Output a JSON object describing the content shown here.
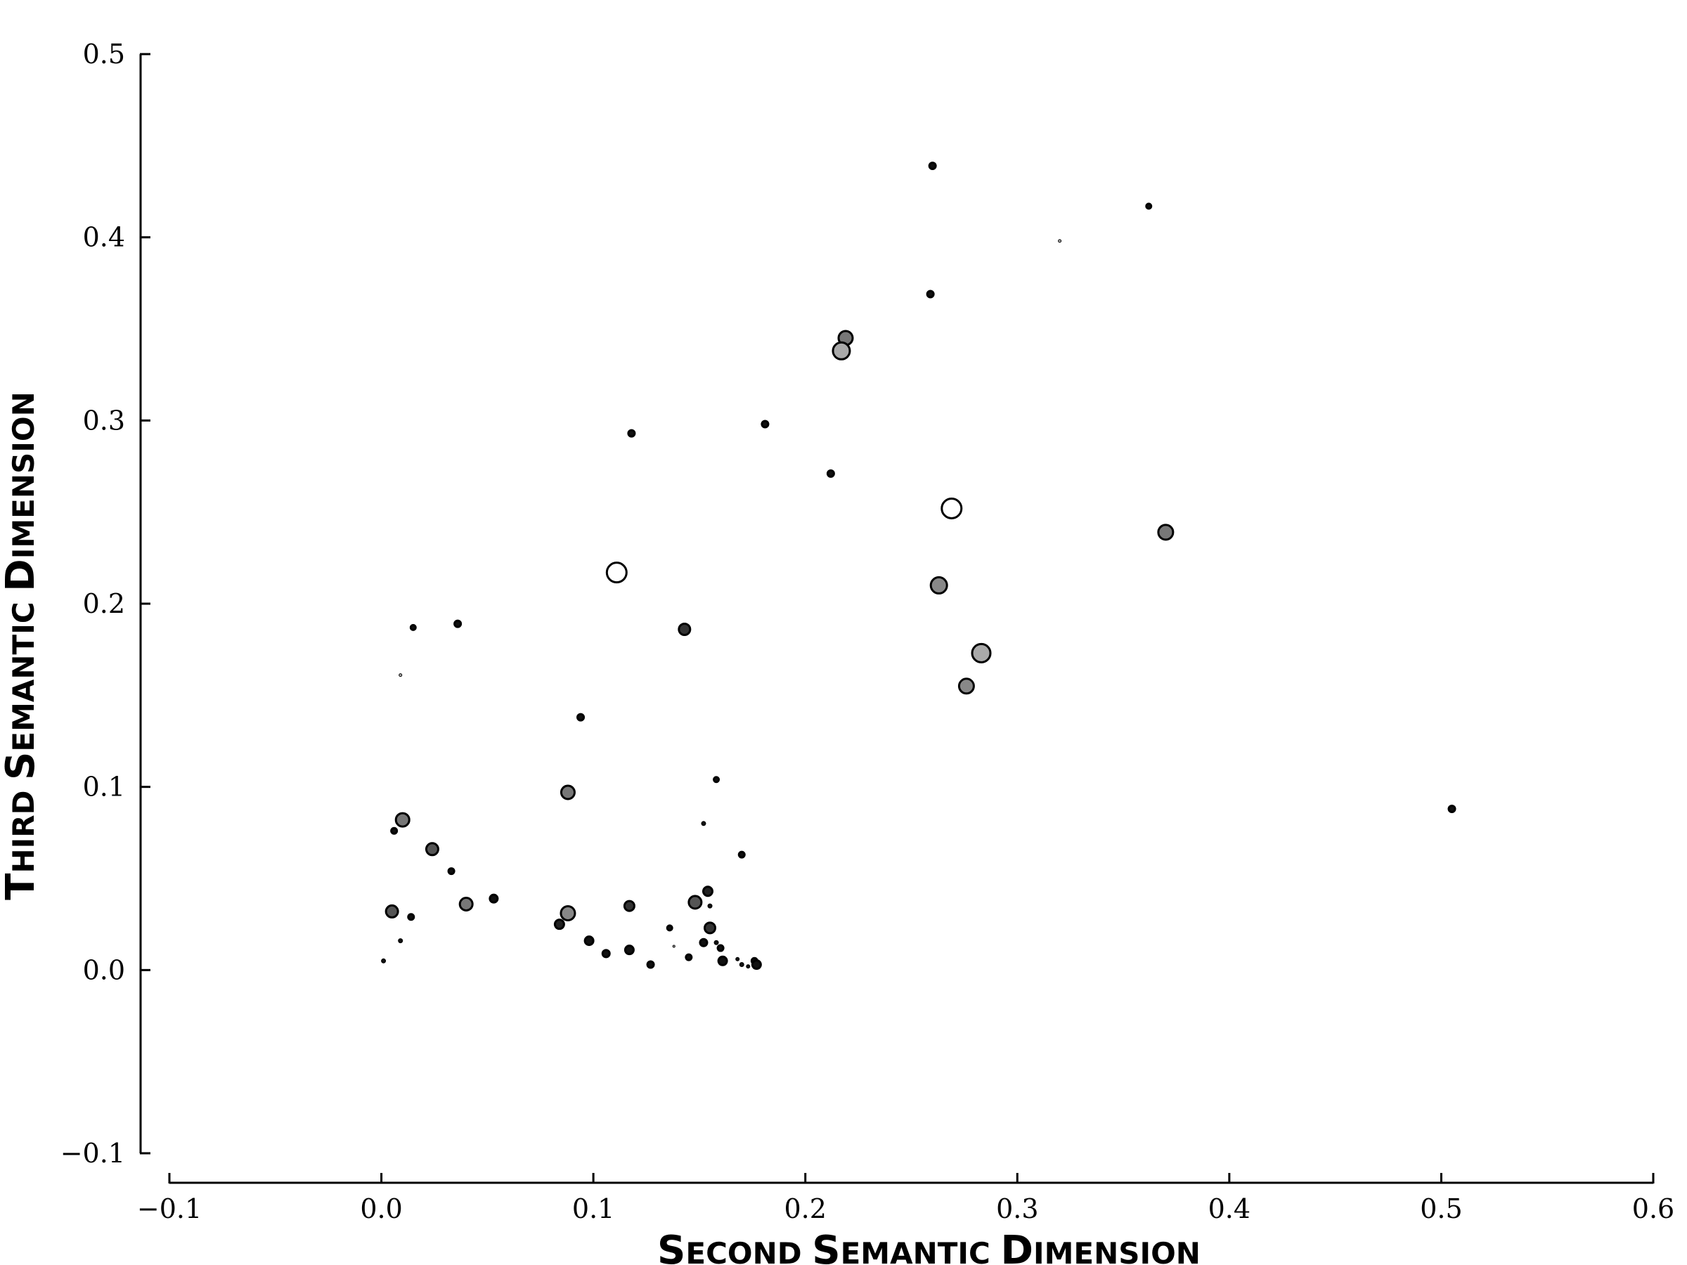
{
  "chart_data": {
    "type": "scatter",
    "title": "",
    "xlabel": "Second Semantic Dimension",
    "ylabel": "Third Semantic Dimension",
    "xlim": [
      -0.1,
      0.6
    ],
    "ylim": [
      -0.1,
      0.5
    ],
    "xticks": [
      "−0.1",
      "0.0",
      "0.1",
      "0.2",
      "0.3",
      "0.4",
      "0.5",
      "0.6"
    ],
    "yticks": [
      "−0.1",
      "0.0",
      "0.1",
      "0.2",
      "0.3",
      "0.4",
      "0.5"
    ],
    "grid": false,
    "encoding": "marker size and grey fill vary per point",
    "points": [
      {
        "x": 0.26,
        "y": 0.439,
        "size": 4.5,
        "fill": "#111111"
      },
      {
        "x": 0.362,
        "y": 0.417,
        "size": 3.5,
        "fill": "#111111"
      },
      {
        "x": 0.32,
        "y": 0.398,
        "size": 2,
        "fill": "#aaaaaa"
      },
      {
        "x": 0.259,
        "y": 0.369,
        "size": 4.5,
        "fill": "#111111"
      },
      {
        "x": 0.219,
        "y": 0.345,
        "size": 10,
        "fill": "#777777"
      },
      {
        "x": 0.217,
        "y": 0.338,
        "size": 12,
        "fill": "#aaaaaa"
      },
      {
        "x": 0.181,
        "y": 0.298,
        "size": 4.5,
        "fill": "#111111"
      },
      {
        "x": 0.118,
        "y": 0.293,
        "size": 4.5,
        "fill": "#111111"
      },
      {
        "x": 0.212,
        "y": 0.271,
        "size": 4.5,
        "fill": "#111111"
      },
      {
        "x": 0.269,
        "y": 0.252,
        "size": 14,
        "fill": "#ffffff"
      },
      {
        "x": 0.37,
        "y": 0.239,
        "size": 10.5,
        "fill": "#777777"
      },
      {
        "x": 0.111,
        "y": 0.217,
        "size": 14,
        "fill": "#ffffff"
      },
      {
        "x": 0.263,
        "y": 0.21,
        "size": 11.5,
        "fill": "#888888"
      },
      {
        "x": 0.036,
        "y": 0.189,
        "size": 4.5,
        "fill": "#111111"
      },
      {
        "x": 0.015,
        "y": 0.187,
        "size": 3.5,
        "fill": "#111111"
      },
      {
        "x": 0.143,
        "y": 0.186,
        "size": 8,
        "fill": "#333333"
      },
      {
        "x": 0.283,
        "y": 0.173,
        "size": 13,
        "fill": "#aaaaaa"
      },
      {
        "x": 0.009,
        "y": 0.161,
        "size": 2,
        "fill": "#aaaaaa"
      },
      {
        "x": 0.276,
        "y": 0.155,
        "size": 10.5,
        "fill": "#888888"
      },
      {
        "x": 0.094,
        "y": 0.138,
        "size": 4.5,
        "fill": "#111111"
      },
      {
        "x": 0.158,
        "y": 0.104,
        "size": 3.5,
        "fill": "#111111"
      },
      {
        "x": 0.088,
        "y": 0.097,
        "size": 9.5,
        "fill": "#777777"
      },
      {
        "x": 0.505,
        "y": 0.088,
        "size": 4.5,
        "fill": "#111111"
      },
      {
        "x": 0.01,
        "y": 0.082,
        "size": 9.5,
        "fill": "#777777"
      },
      {
        "x": 0.152,
        "y": 0.08,
        "size": 3,
        "fill": "#111111"
      },
      {
        "x": 0.006,
        "y": 0.076,
        "size": 4,
        "fill": "#111111"
      },
      {
        "x": 0.024,
        "y": 0.066,
        "size": 8.5,
        "fill": "#555555"
      },
      {
        "x": 0.17,
        "y": 0.063,
        "size": 4,
        "fill": "#111111"
      },
      {
        "x": 0.033,
        "y": 0.054,
        "size": 4,
        "fill": "#111111"
      },
      {
        "x": 0.154,
        "y": 0.043,
        "size": 6.5,
        "fill": "#222222"
      },
      {
        "x": 0.053,
        "y": 0.039,
        "size": 5.5,
        "fill": "#111111"
      },
      {
        "x": 0.04,
        "y": 0.036,
        "size": 9,
        "fill": "#777777"
      },
      {
        "x": 0.148,
        "y": 0.037,
        "size": 9,
        "fill": "#555555"
      },
      {
        "x": 0.117,
        "y": 0.035,
        "size": 7,
        "fill": "#333333"
      },
      {
        "x": 0.155,
        "y": 0.035,
        "size": 3,
        "fill": "#111111"
      },
      {
        "x": 0.005,
        "y": 0.032,
        "size": 8.5,
        "fill": "#555555"
      },
      {
        "x": 0.088,
        "y": 0.031,
        "size": 10,
        "fill": "#888888"
      },
      {
        "x": 0.014,
        "y": 0.029,
        "size": 4,
        "fill": "#111111"
      },
      {
        "x": 0.084,
        "y": 0.025,
        "size": 6.5,
        "fill": "#222222"
      },
      {
        "x": 0.136,
        "y": 0.023,
        "size": 3.5,
        "fill": "#111111"
      },
      {
        "x": 0.155,
        "y": 0.023,
        "size": 7.5,
        "fill": "#333333"
      },
      {
        "x": 0.009,
        "y": 0.016,
        "size": 3,
        "fill": "#111111"
      },
      {
        "x": 0.098,
        "y": 0.016,
        "size": 6,
        "fill": "#111111"
      },
      {
        "x": 0.152,
        "y": 0.015,
        "size": 5,
        "fill": "#111111"
      },
      {
        "x": 0.158,
        "y": 0.015,
        "size": 3,
        "fill": "#111111"
      },
      {
        "x": 0.138,
        "y": 0.013,
        "size": 1.5,
        "fill": "#bbbbbb"
      },
      {
        "x": 0.16,
        "y": 0.012,
        "size": 4,
        "fill": "#111111"
      },
      {
        "x": 0.117,
        "y": 0.011,
        "size": 6,
        "fill": "#111111"
      },
      {
        "x": 0.106,
        "y": 0.009,
        "size": 5,
        "fill": "#111111"
      },
      {
        "x": 0.145,
        "y": 0.007,
        "size": 4,
        "fill": "#111111"
      },
      {
        "x": 0.001,
        "y": 0.005,
        "size": 3,
        "fill": "#111111"
      },
      {
        "x": 0.161,
        "y": 0.005,
        "size": 6,
        "fill": "#111111"
      },
      {
        "x": 0.168,
        "y": 0.006,
        "size": 2.5,
        "fill": "#111111"
      },
      {
        "x": 0.176,
        "y": 0.005,
        "size": 4,
        "fill": "#111111"
      },
      {
        "x": 0.127,
        "y": 0.003,
        "size": 4.5,
        "fill": "#111111"
      },
      {
        "x": 0.17,
        "y": 0.003,
        "size": 3,
        "fill": "#111111"
      },
      {
        "x": 0.173,
        "y": 0.002,
        "size": 2.5,
        "fill": "#111111"
      },
      {
        "x": 0.177,
        "y": 0.003,
        "size": 6,
        "fill": "#111111"
      }
    ]
  }
}
